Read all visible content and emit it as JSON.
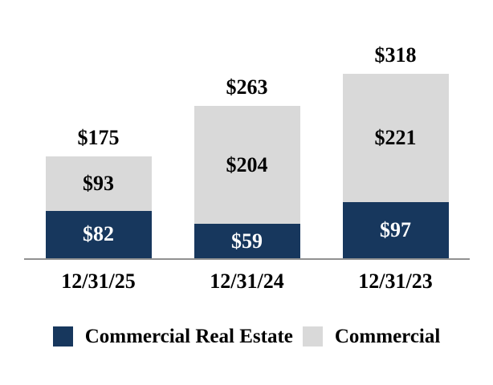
{
  "chart_data": {
    "type": "bar",
    "stacked": true,
    "title": "",
    "xlabel": "",
    "ylabel": "",
    "grid": false,
    "legend_position": "bottom",
    "categories": [
      "12/31/25",
      "12/31/24",
      "12/31/23"
    ],
    "series": [
      {
        "name": "Commercial Real Estate",
        "color": "#17375D",
        "text_color": "#FFFFFF",
        "values": [
          82,
          59,
          97
        ],
        "labels": [
          "$82",
          "$59",
          "$97"
        ]
      },
      {
        "name": "Commercial",
        "color": "#D9D9D9",
        "text_color": "#000000",
        "values": [
          93,
          204,
          221
        ],
        "labels": [
          "$93",
          "$204",
          "$221"
        ]
      }
    ],
    "totals": [
      175,
      263,
      318
    ],
    "total_labels": [
      "$175",
      "$263",
      "$318"
    ],
    "ylim": [
      0,
      318
    ]
  },
  "colors": {
    "axis_line": "#919191",
    "background": "#FFFFFF",
    "label_text": "#000000"
  }
}
